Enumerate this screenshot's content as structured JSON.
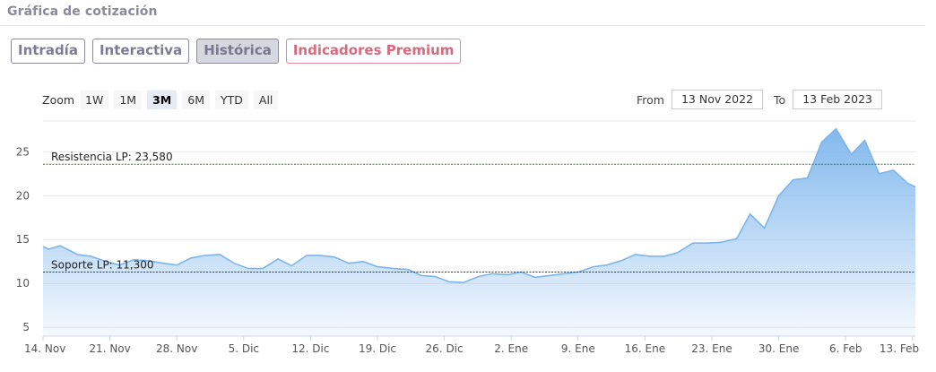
{
  "header": {
    "title": "Gráfica de cotización"
  },
  "tabs": [
    {
      "label": "Intradía",
      "active": false
    },
    {
      "label": "Interactiva",
      "active": false
    },
    {
      "label": "Histórica",
      "active": true
    },
    {
      "label": "Indicadores Premium",
      "active": false,
      "premium": true
    }
  ],
  "zoom": {
    "label": "Zoom",
    "buttons": [
      {
        "label": "1W",
        "active": false
      },
      {
        "label": "1M",
        "active": false
      },
      {
        "label": "3M",
        "active": true
      },
      {
        "label": "6M",
        "active": false
      },
      {
        "label": "YTD",
        "active": false
      },
      {
        "label": "All",
        "active": false
      }
    ]
  },
  "range": {
    "from_label": "From",
    "from_value": "13 Nov 2022",
    "to_label": "To",
    "to_value": "13 Feb 2023"
  },
  "colors": {
    "line": "#7cb5ec",
    "resistance": "#2e7d32",
    "support": "#b00020"
  },
  "chart_data": {
    "type": "area",
    "ylim": [
      4,
      28.5
    ],
    "yticks": [
      5,
      10,
      15,
      20,
      25
    ],
    "xticks": [
      {
        "label": "14. Nov",
        "day": 0
      },
      {
        "label": "21. Nov",
        "day": 7
      },
      {
        "label": "28. Nov",
        "day": 14
      },
      {
        "label": "5. Dic",
        "day": 21
      },
      {
        "label": "12. Dic",
        "day": 28
      },
      {
        "label": "19. Dic",
        "day": 35
      },
      {
        "label": "26. Dic",
        "day": 42
      },
      {
        "label": "2. Ene",
        "day": 49
      },
      {
        "label": "9. Ene",
        "day": 56
      },
      {
        "label": "16. Ene",
        "day": 63
      },
      {
        "label": "23. Ene",
        "day": 70
      },
      {
        "label": "30. Ene",
        "day": 77
      },
      {
        "label": "6. Feb",
        "day": 84
      },
      {
        "label": "13. Feb",
        "day": 91
      }
    ],
    "xlim": [
      0,
      91.3
    ],
    "lines": [
      {
        "label": "Resistencia LP: 23,580",
        "value": 23.58
      },
      {
        "label": "Soporte LP: 11,300",
        "value": 11.3
      }
    ],
    "x": [
      0,
      0.6,
      1.8,
      3.6,
      5.0,
      6.6,
      8.0,
      9.5,
      11.0,
      12.6,
      14.0,
      15.5,
      17.0,
      18.5,
      20.0,
      21.5,
      23.0,
      24.6,
      26.0,
      27.6,
      29.0,
      30.5,
      32.0,
      33.5,
      35.0,
      36.7,
      38.2,
      39.6,
      41.0,
      42.5,
      44.0,
      45.6,
      47.0,
      48.7,
      50.0,
      51.5,
      53.0,
      54.5,
      56.0,
      57.6,
      59.0,
      60.5,
      62.0,
      63.6,
      65.0,
      66.4,
      68.0,
      69.5,
      71.0,
      72.6,
      74.0,
      75.5,
      77.0,
      78.5,
      80.0,
      81.5,
      83.0,
      84.6,
      86.0,
      87.5,
      89.0,
      90.5,
      91.3
    ],
    "values": [
      14.2,
      13.9,
      14.3,
      13.3,
      13.1,
      12.5,
      12.1,
      12.7,
      12.6,
      12.3,
      12.1,
      12.9,
      13.2,
      13.3,
      12.3,
      11.7,
      11.7,
      12.8,
      12.0,
      13.2,
      13.2,
      13.0,
      12.3,
      12.5,
      11.9,
      11.7,
      11.6,
      10.9,
      10.8,
      10.2,
      10.1,
      10.8,
      11.1,
      11.0,
      11.3,
      10.7,
      10.9,
      11.1,
      11.3,
      11.9,
      12.1,
      12.6,
      13.3,
      13.1,
      13.1,
      13.5,
      14.6,
      14.6,
      14.7,
      15.1,
      17.9,
      16.3,
      20.0,
      21.8,
      22.0,
      26.1,
      27.6,
      24.7,
      26.3,
      22.5,
      22.9,
      21.4,
      21.0
    ]
  }
}
